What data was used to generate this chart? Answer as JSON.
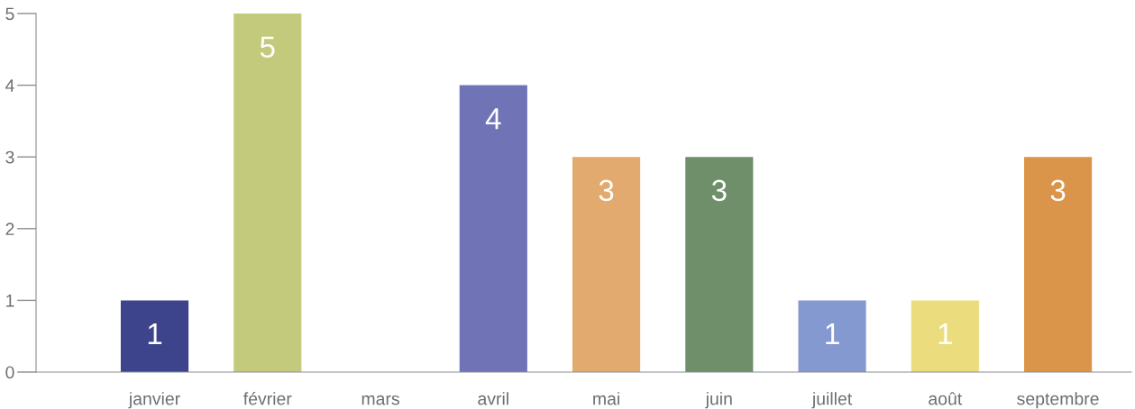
{
  "chart_data": {
    "type": "bar",
    "categories": [
      "janvier",
      "février",
      "mars",
      "avril",
      "mai",
      "juin",
      "juillet",
      "août",
      "septembre"
    ],
    "values": [
      1,
      5,
      0,
      4,
      3,
      3,
      1,
      1,
      3
    ],
    "colors": [
      "#3d448c",
      "#c4ca7c",
      "#9aa0a6",
      "#7074b6",
      "#e2aa6e",
      "#6e8f69",
      "#8399cf",
      "#ebdc7e",
      "#da954a"
    ],
    "value_labels": [
      "1",
      "5",
      null,
      "4",
      "3",
      "3",
      "1",
      "1",
      "3"
    ],
    "ylim": [
      0,
      5
    ],
    "yticks": [
      0,
      1,
      2,
      3,
      4,
      5
    ],
    "grid": false,
    "legend": false
  }
}
